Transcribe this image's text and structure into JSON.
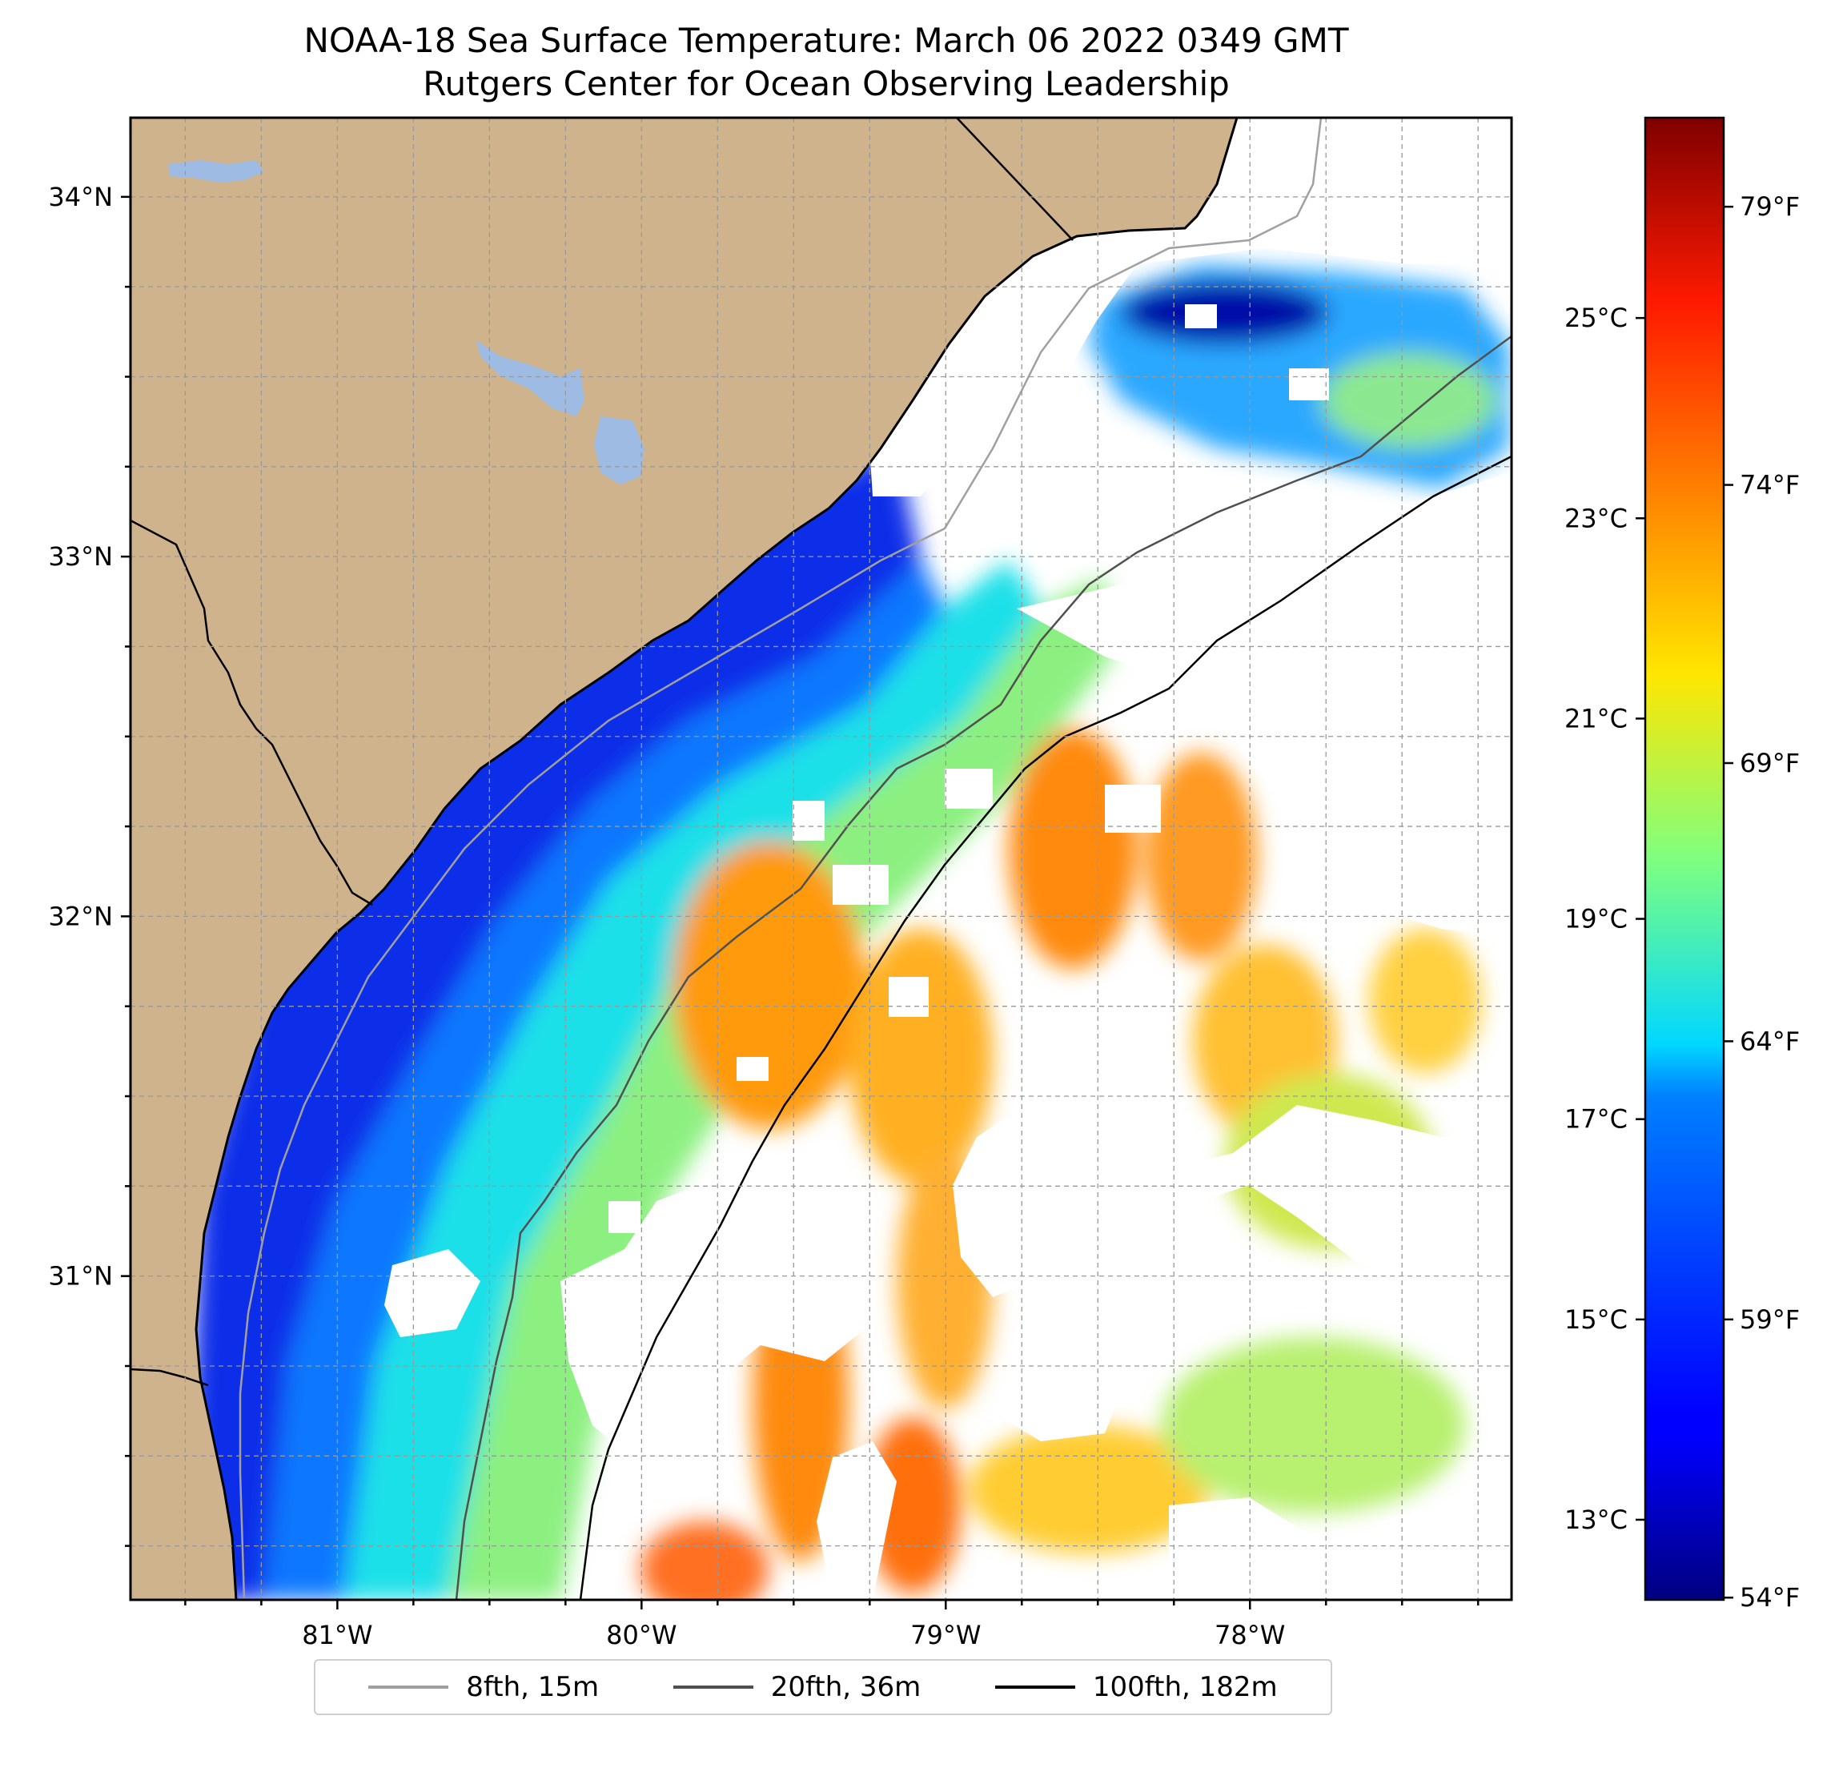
{
  "title": "NOAA-18 Sea Surface Temperature: March 06 2022 0349 GMT",
  "subtitle": "Rutgers Center for Ocean Observing Leadership",
  "map": {
    "lon_range": [
      -81.68,
      -77.14
    ],
    "lat_range": [
      30.1,
      34.22
    ],
    "lon_ticks": [
      {
        "value": -81,
        "label": "81°W"
      },
      {
        "value": -80,
        "label": "80°W"
      },
      {
        "value": -79,
        "label": "79°W"
      },
      {
        "value": -78,
        "label": "78°W"
      }
    ],
    "lat_ticks": [
      {
        "value": 31,
        "label": "31°N"
      },
      {
        "value": 32,
        "label": "32°N"
      },
      {
        "value": 33,
        "label": "33°N"
      },
      {
        "value": 34,
        "label": "34°N"
      }
    ],
    "gridlines": "on",
    "land_color": "#cfb38c",
    "water_body_color": "#9ebbe4"
  },
  "colorbar": {
    "colormap": "jet",
    "range_c": [
      12.2,
      27.0
    ],
    "celsius_ticks": [
      {
        "value": 13,
        "label": "13°C"
      },
      {
        "value": 15,
        "label": "15°C"
      },
      {
        "value": 17,
        "label": "17°C"
      },
      {
        "value": 19,
        "label": "19°C"
      },
      {
        "value": 21,
        "label": "21°C"
      },
      {
        "value": 23,
        "label": "23°C"
      },
      {
        "value": 25,
        "label": "25°C"
      }
    ],
    "fahrenheit_ticks": [
      {
        "value": 54,
        "label": "54°F"
      },
      {
        "value": 59,
        "label": "59°F"
      },
      {
        "value": 64,
        "label": "64°F"
      },
      {
        "value": 69,
        "label": "69°F"
      },
      {
        "value": 74,
        "label": "74°F"
      },
      {
        "value": 79,
        "label": "79°F"
      }
    ]
  },
  "legend": {
    "placement": "bottom-center",
    "items": [
      {
        "label": "8fth, 15m",
        "color": "#a0a0a0"
      },
      {
        "label": "20fth, 36m",
        "color": "#505050"
      },
      {
        "label": "100fth, 182m",
        "color": "#000000"
      }
    ]
  }
}
